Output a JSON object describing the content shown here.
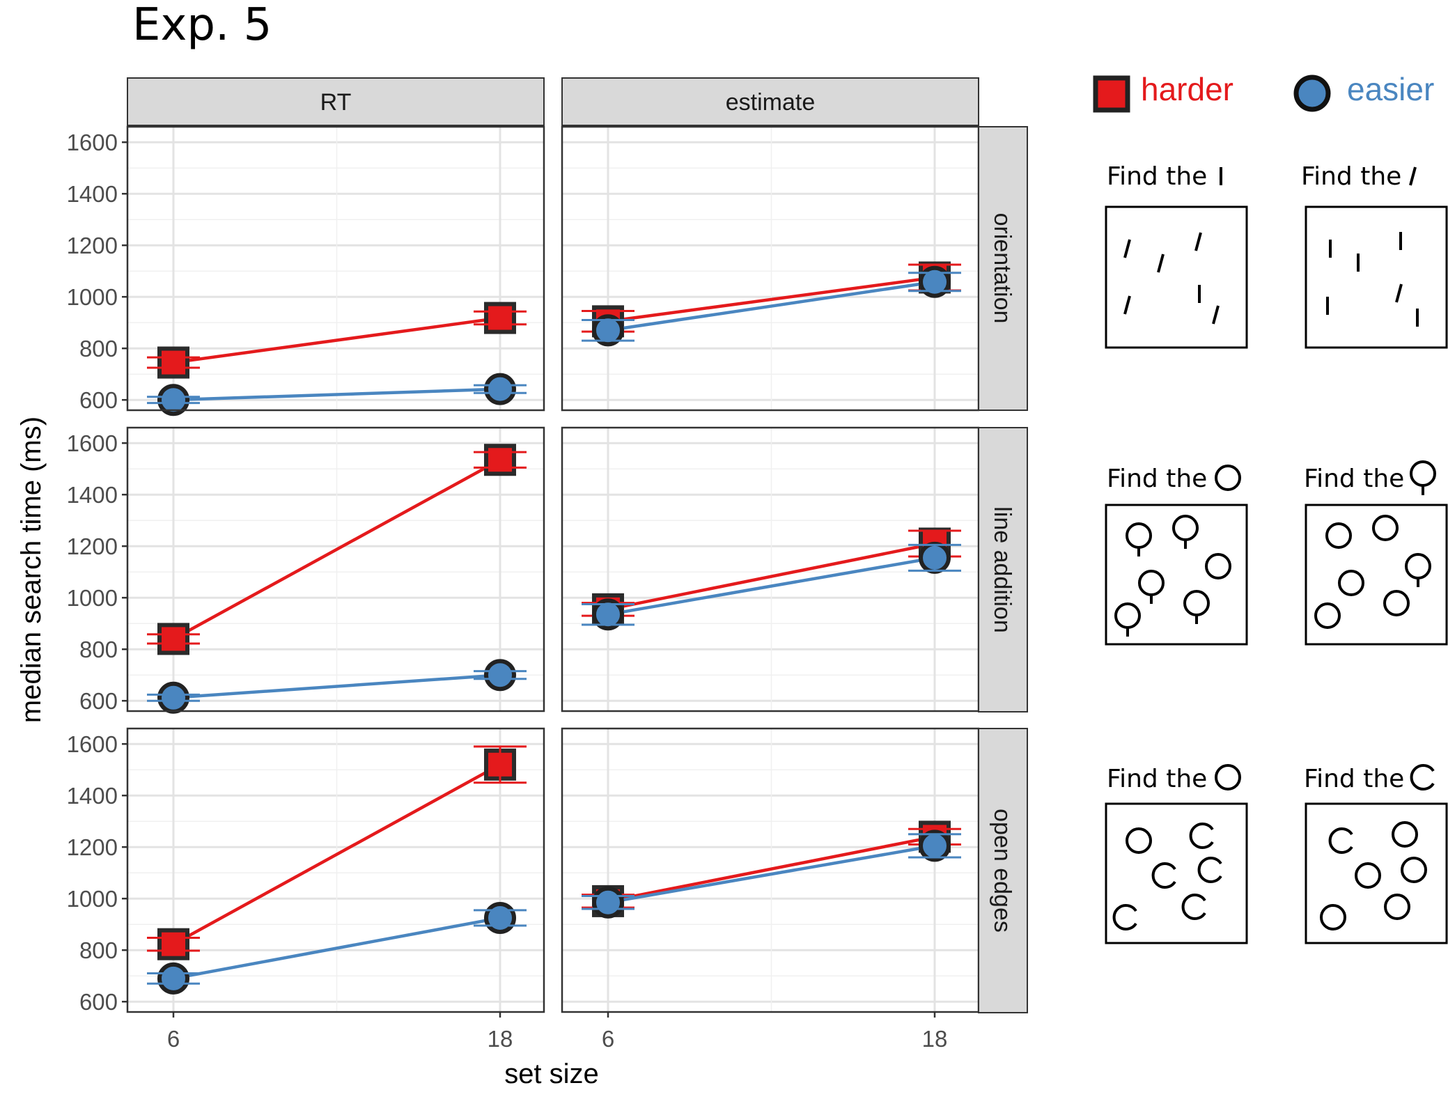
{
  "title": "Exp. 5",
  "legend": [
    {
      "label": "harder",
      "color": "#e41a1c",
      "shape": "square"
    },
    {
      "label": "easier",
      "color": "#4a86c0",
      "shape": "circle"
    }
  ],
  "chart_data": {
    "type": "line",
    "title": "Exp. 5",
    "xlabel": "set size",
    "ylabel": "median search time (ms)",
    "x": [
      6,
      18
    ],
    "ylim": [
      560,
      1660
    ],
    "yticks": [
      600,
      800,
      1000,
      1200,
      1400,
      1600
    ],
    "grid": true,
    "legend_position": "top-right",
    "columns": [
      "RT",
      "estimate"
    ],
    "rows": [
      "orientation",
      "line addition",
      "open edges"
    ],
    "panels": [
      {
        "row": "orientation",
        "column": "RT",
        "series": [
          {
            "name": "harder",
            "values": [
              745,
              918
            ],
            "err": [
              20,
              25
            ]
          },
          {
            "name": "easier",
            "values": [
              600,
              642
            ],
            "err": [
              12,
              15
            ]
          }
        ]
      },
      {
        "row": "orientation",
        "column": "estimate",
        "series": [
          {
            "name": "harder",
            "values": [
              905,
              1075
            ],
            "err": [
              40,
              50
            ]
          },
          {
            "name": "easier",
            "values": [
              870,
              1058
            ],
            "err": [
              40,
              35
            ]
          }
        ]
      },
      {
        "row": "line addition",
        "column": "RT",
        "series": [
          {
            "name": "harder",
            "values": [
              840,
              1535
            ],
            "err": [
              18,
              30
            ]
          },
          {
            "name": "easier",
            "values": [
              612,
              700
            ],
            "err": [
              12,
              15
            ]
          }
        ]
      },
      {
        "row": "line addition",
        "column": "estimate",
        "series": [
          {
            "name": "harder",
            "values": [
              955,
              1210
            ],
            "err": [
              25,
              50
            ]
          },
          {
            "name": "easier",
            "values": [
              935,
              1155
            ],
            "err": [
              40,
              50
            ]
          }
        ]
      },
      {
        "row": "open edges",
        "column": "RT",
        "series": [
          {
            "name": "harder",
            "values": [
              823,
              1520
            ],
            "err": [
              25,
              70
            ]
          },
          {
            "name": "easier",
            "values": [
              690,
              925
            ],
            "err": [
              20,
              30
            ]
          }
        ]
      },
      {
        "row": "open edges",
        "column": "estimate",
        "series": [
          {
            "name": "harder",
            "values": [
              990,
              1240
            ],
            "err": [
              25,
              30
            ]
          },
          {
            "name": "easier",
            "values": [
              985,
              1205
            ],
            "err": [
              25,
              45
            ]
          }
        ]
      }
    ]
  },
  "examples": [
    {
      "row": "orientation",
      "left_label": "Find the",
      "right_label": "Find the"
    },
    {
      "row": "line addition",
      "left_label": "Find the",
      "right_label": "Find the"
    },
    {
      "row": "open edges",
      "left_label": "Find the",
      "right_label": "Find the"
    }
  ]
}
